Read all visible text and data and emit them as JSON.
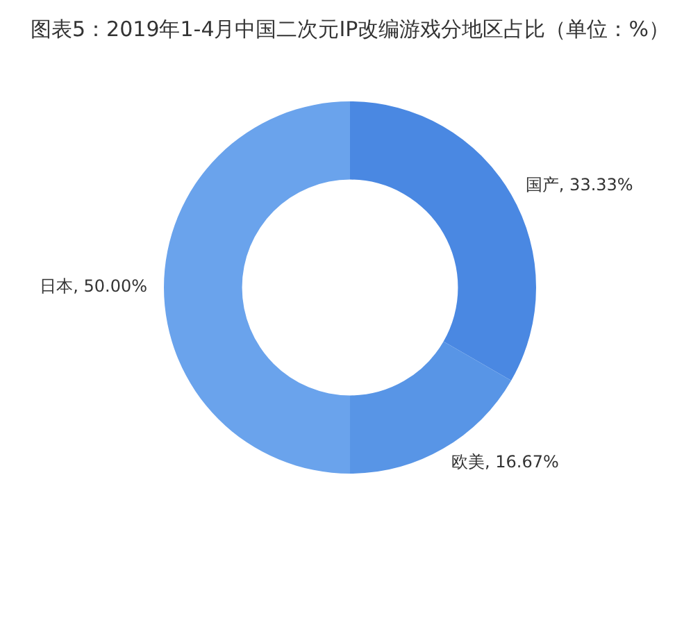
{
  "chart_data": {
    "type": "donut",
    "title": "图表5：2019年1-4月中国二次元IP改编游戏分地区占比（单位：%）",
    "categories": [
      "国产",
      "欧美",
      "日本"
    ],
    "values": [
      33.33,
      16.67,
      50
    ],
    "value_labels": [
      "33.33%",
      "16.67%",
      "50.00%"
    ],
    "colors": [
      "#4a88e2",
      "#5895e6",
      "#6aa3ec"
    ],
    "legend": false
  }
}
